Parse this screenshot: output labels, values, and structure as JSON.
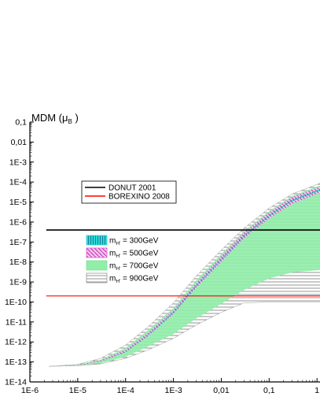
{
  "chart_data": {
    "type": "area",
    "ylabel": "MDM (μB )",
    "xlabel": "",
    "x_scale": "log",
    "y_scale": "log",
    "xlim": [
      1e-06,
      1.2
    ],
    "ylim": [
      1e-14,
      0.1
    ],
    "x_ticks": [
      {
        "v": 1e-06,
        "label": "1E-6"
      },
      {
        "v": 1e-05,
        "label": "1E-5"
      },
      {
        "v": 0.0001,
        "label": "1E-4"
      },
      {
        "v": 0.001,
        "label": "1E-3"
      },
      {
        "v": 0.01,
        "label": "0,01"
      },
      {
        "v": 0.1,
        "label": "0,1"
      },
      {
        "v": 1,
        "label": "1"
      }
    ],
    "y_ticks": [
      {
        "v": 0.1,
        "label": "0,1"
      },
      {
        "v": 0.01,
        "label": "0,01"
      },
      {
        "v": 0.001,
        "label": "1E-3"
      },
      {
        "v": 0.0001,
        "label": "1E-4"
      },
      {
        "v": 1e-05,
        "label": "1E-5"
      },
      {
        "v": 1e-06,
        "label": "1E-6"
      },
      {
        "v": 1e-07,
        "label": "1E-7"
      },
      {
        "v": 1e-08,
        "label": "1E-8"
      },
      {
        "v": 1e-09,
        "label": "1E-9"
      },
      {
        "v": 1e-10,
        "label": "1E-10"
      },
      {
        "v": 1e-11,
        "label": "1E-11"
      },
      {
        "v": 1e-12,
        "label": "1E-12"
      },
      {
        "v": 1e-13,
        "label": "1E-13"
      },
      {
        "v": 1e-14,
        "label": "1E-14"
      }
    ],
    "hlines": [
      {
        "name": "DONUT 2001",
        "y": 4e-07,
        "color": "#000000"
      },
      {
        "name": "BOREXINO 2008",
        "y": 2e-10,
        "color": "#ff0000"
      }
    ],
    "bands": [
      {
        "name": "= 900GeV",
        "color": "#9a9a9a",
        "hatch": "horizontal",
        "upper": [
          [
            2.5e-06,
            6e-14
          ],
          [
            1e-05,
            7.5e-14
          ],
          [
            3e-05,
            1.5e-13
          ],
          [
            0.0001,
            7e-13
          ],
          [
            0.0003,
            6e-12
          ],
          [
            0.001,
            9e-11
          ],
          [
            0.003,
            2e-09
          ],
          [
            0.01,
            4e-08
          ],
          [
            0.03,
            5e-07
          ],
          [
            0.1,
            5e-06
          ],
          [
            0.3,
            2.5e-05
          ],
          [
            1.2,
            9e-05
          ]
        ],
        "lower": [
          [
            2.5e-06,
            6e-14
          ],
          [
            1e-05,
            6.5e-14
          ],
          [
            3e-05,
            8e-14
          ],
          [
            0.0001,
            1.5e-13
          ],
          [
            0.0003,
            4e-13
          ],
          [
            0.001,
            1.5e-12
          ],
          [
            0.003,
            7e-12
          ],
          [
            0.01,
            3e-11
          ],
          [
            0.03,
            9e-11
          ],
          [
            0.1,
            1e-10
          ],
          [
            0.3,
            1e-10
          ],
          [
            1.2,
            1e-10
          ]
        ]
      },
      {
        "name": "= 700GeV",
        "color": "#7fe59a",
        "hatch": "solid",
        "upper": [
          [
            2.5e-06,
            6e-14
          ],
          [
            1e-05,
            7.2e-14
          ],
          [
            3e-05,
            1.3e-13
          ],
          [
            0.0001,
            5e-13
          ],
          [
            0.0003,
            4e-12
          ],
          [
            0.001,
            5e-11
          ],
          [
            0.003,
            1.2e-09
          ],
          [
            0.01,
            2.5e-08
          ],
          [
            0.03,
            3.5e-07
          ],
          [
            0.1,
            3.5e-06
          ],
          [
            0.3,
            2e-05
          ],
          [
            1.2,
            7e-05
          ]
        ],
        "lower": [
          [
            2.5e-06,
            6e-14
          ],
          [
            1e-05,
            6.6e-14
          ],
          [
            3e-05,
            8.5e-14
          ],
          [
            0.0001,
            1.8e-13
          ],
          [
            0.0003,
            6e-13
          ],
          [
            0.001,
            2.5e-12
          ],
          [
            0.003,
            1.5e-11
          ],
          [
            0.01,
            8e-11
          ],
          [
            0.03,
            4e-10
          ],
          [
            0.1,
            1.5e-09
          ],
          [
            0.3,
            3e-09
          ],
          [
            1.2,
            4e-09
          ]
        ]
      },
      {
        "name": "= 500GeV",
        "color": "#e05ad0",
        "hatch": "diagonal",
        "upper": [
          [
            2.5e-06,
            6e-14
          ],
          [
            1e-05,
            7e-14
          ],
          [
            3e-05,
            1.2e-13
          ],
          [
            0.0001,
            4e-13
          ],
          [
            0.0003,
            3e-12
          ],
          [
            0.001,
            4e-11
          ],
          [
            0.003,
            9e-10
          ],
          [
            0.01,
            2e-08
          ],
          [
            0.03,
            3e-07
          ],
          [
            0.1,
            3e-06
          ],
          [
            0.3,
            1.8e-05
          ],
          [
            1.2,
            6e-05
          ]
        ],
        "lower": [
          [
            2.5e-06,
            6e-14
          ],
          [
            1e-05,
            6.8e-14
          ],
          [
            3e-05,
            1.05e-13
          ],
          [
            0.0001,
            3e-13
          ],
          [
            0.0003,
            2e-12
          ],
          [
            0.001,
            2.5e-11
          ],
          [
            0.003,
            5e-10
          ],
          [
            0.01,
            1e-08
          ],
          [
            0.03,
            1.5e-07
          ],
          [
            0.1,
            1.5e-06
          ],
          [
            0.3,
            8e-06
          ],
          [
            1.2,
            3e-05
          ]
        ]
      },
      {
        "name": "= 300GeV",
        "color": "#2fd8d8",
        "hatch": "vertical",
        "upper": [
          [
            2.5e-06,
            6e-14
          ],
          [
            1e-05,
            6.9e-14
          ],
          [
            3e-05,
            1.1e-13
          ],
          [
            0.0001,
            3.3e-13
          ],
          [
            0.0003,
            2.4e-12
          ],
          [
            0.001,
            3.2e-11
          ],
          [
            0.003,
            7e-10
          ],
          [
            0.01,
            1.5e-08
          ],
          [
            0.03,
            2.2e-07
          ],
          [
            0.1,
            2.2e-06
          ],
          [
            0.3,
            1.3e-05
          ],
          [
            1.2,
            4.5e-05
          ]
        ],
        "lower": [
          [
            2.5e-06,
            6e-14
          ],
          [
            1e-05,
            6.85e-14
          ],
          [
            3e-05,
            1.08e-13
          ],
          [
            0.0001,
            3.1e-13
          ],
          [
            0.0003,
            2.2e-12
          ],
          [
            0.001,
            2.8e-11
          ],
          [
            0.003,
            6e-10
          ],
          [
            0.01,
            1.3e-08
          ],
          [
            0.03,
            1.9e-07
          ],
          [
            0.1,
            1.9e-06
          ],
          [
            0.3,
            1.1e-05
          ],
          [
            1.2,
            3.8e-05
          ]
        ]
      }
    ],
    "legend_lines": [
      {
        "label": "DONUT 2001",
        "color": "#000000"
      },
      {
        "label": "BOREXINO 2008",
        "color": "#ff0000"
      }
    ],
    "legend_bands": [
      {
        "symbol": "m",
        "sub": "H'",
        "label": "= 300GeV",
        "color": "#2fd8d8",
        "hatch": "vertical"
      },
      {
        "symbol": "m",
        "sub": "H'",
        "label": "= 500GeV",
        "color": "#e05ad0",
        "hatch": "diagonal"
      },
      {
        "symbol": "m",
        "sub": "H'",
        "label": "= 700GeV",
        "color": "#7fe59a",
        "hatch": "solid"
      },
      {
        "symbol": "m",
        "sub": "H'",
        "label": "= 900GeV",
        "color": "#9a9a9a",
        "hatch": "horizontal"
      }
    ]
  }
}
